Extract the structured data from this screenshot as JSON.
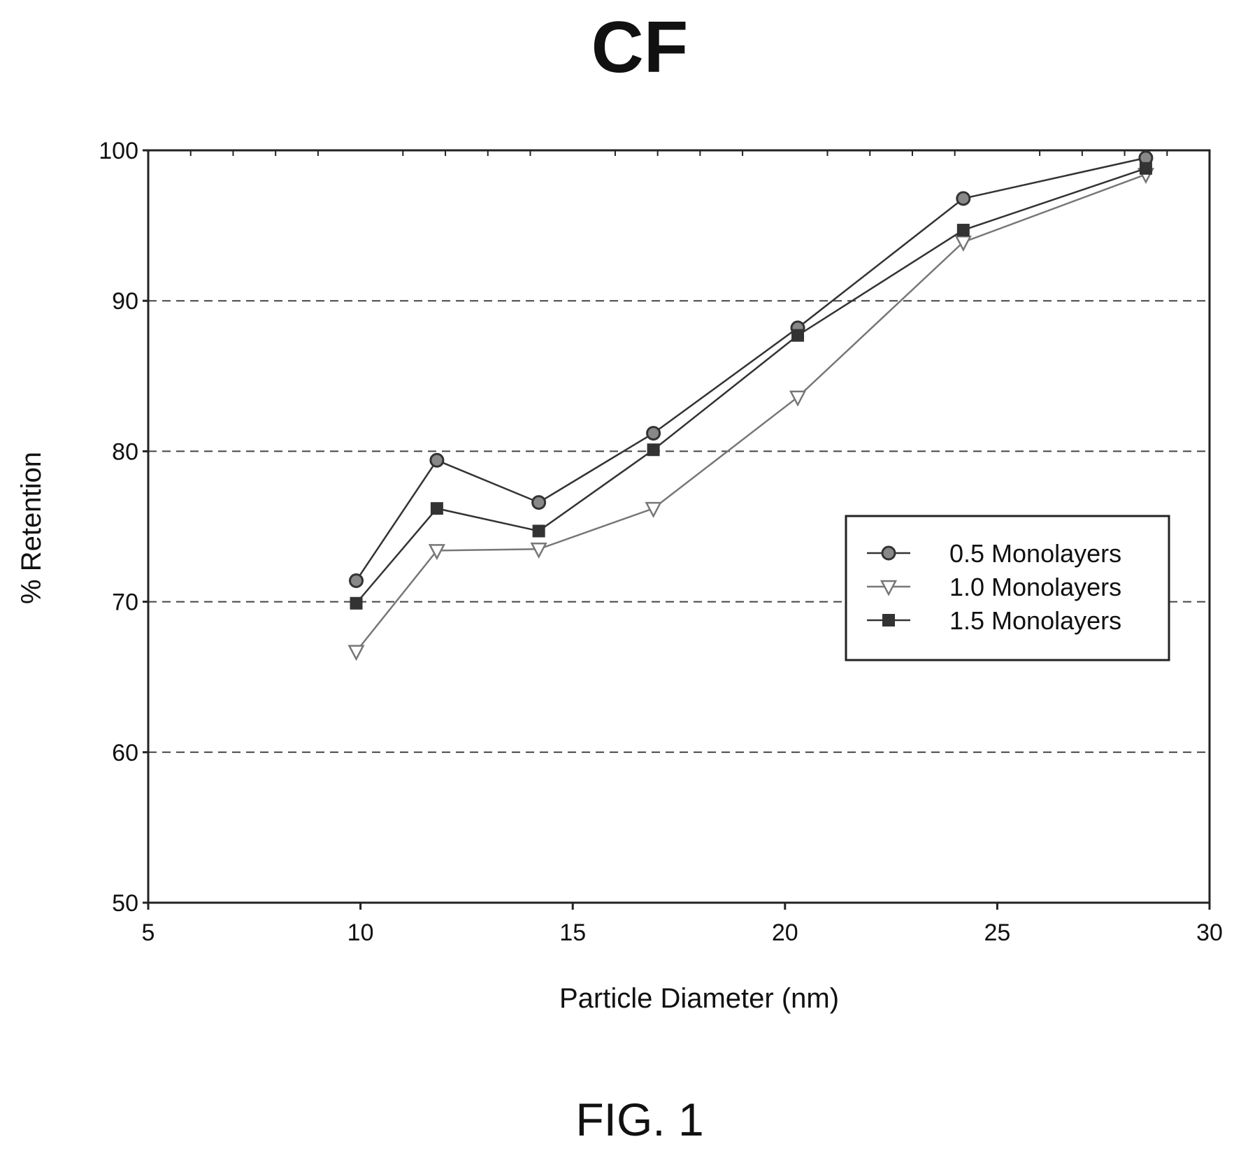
{
  "chart_data": {
    "type": "line",
    "title": "CF",
    "xlabel": "Particle Diameter (nm)",
    "ylabel": "% Retention",
    "xlim": [
      5,
      30
    ],
    "ylim": [
      50,
      100
    ],
    "xticks": [
      5,
      10,
      15,
      20,
      25,
      30
    ],
    "yticks": [
      50,
      60,
      70,
      80,
      90,
      100
    ],
    "grid": "horizontal dashed",
    "legend_position": "right",
    "series": [
      {
        "name": "0.5 Monolayers",
        "marker": "circle",
        "color": "#333333",
        "x": [
          9.9,
          11.8,
          14.2,
          16.9,
          20.3,
          24.2,
          28.5
        ],
        "y": [
          71.4,
          79.4,
          76.6,
          81.2,
          88.2,
          96.8,
          99.5
        ]
      },
      {
        "name": "1.0 Monolayers",
        "marker": "triangle-down",
        "color": "#777777",
        "x": [
          9.9,
          11.8,
          14.2,
          16.9,
          20.3,
          24.2,
          28.5
        ],
        "y": [
          66.7,
          73.4,
          73.5,
          76.2,
          83.6,
          93.9,
          98.4
        ]
      },
      {
        "name": "1.5 Monolayers",
        "marker": "square",
        "color": "#333333",
        "x": [
          9.9,
          11.8,
          14.2,
          16.9,
          20.3,
          24.2,
          28.5
        ],
        "y": [
          69.9,
          76.2,
          74.7,
          80.1,
          87.7,
          94.7,
          98.8
        ]
      }
    ]
  },
  "caption": "FIG. 1"
}
